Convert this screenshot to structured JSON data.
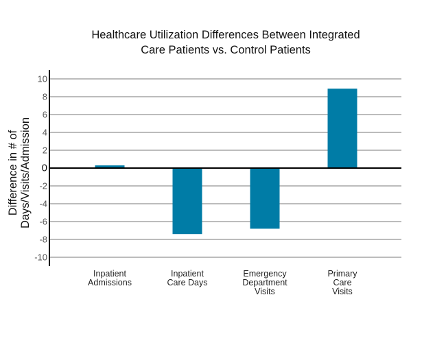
{
  "chart_data": {
    "type": "bar",
    "title_lines": [
      "Healthcare Utilization Differences Between Integrated",
      "Care Patients vs. Control Patients"
    ],
    "ylabel_lines": [
      "Difference in # of",
      "Days/Visits/Admission"
    ],
    "xlabel": "",
    "categories": [
      [
        "Inpatient",
        "Admissions"
      ],
      [
        "Inpatient",
        "Care Days"
      ],
      [
        "Emergency",
        "Department",
        "Visits"
      ],
      [
        "Primary",
        "Care",
        "Visits"
      ]
    ],
    "values": [
      0.3,
      -7.4,
      -6.8,
      8.9
    ],
    "ylim": [
      -11,
      11
    ],
    "yticks": [
      10,
      8,
      6,
      4,
      2,
      0,
      -2,
      -4,
      -6,
      -8,
      -10
    ],
    "grid": true,
    "bar_color": "#007ca6",
    "legend": "none"
  }
}
